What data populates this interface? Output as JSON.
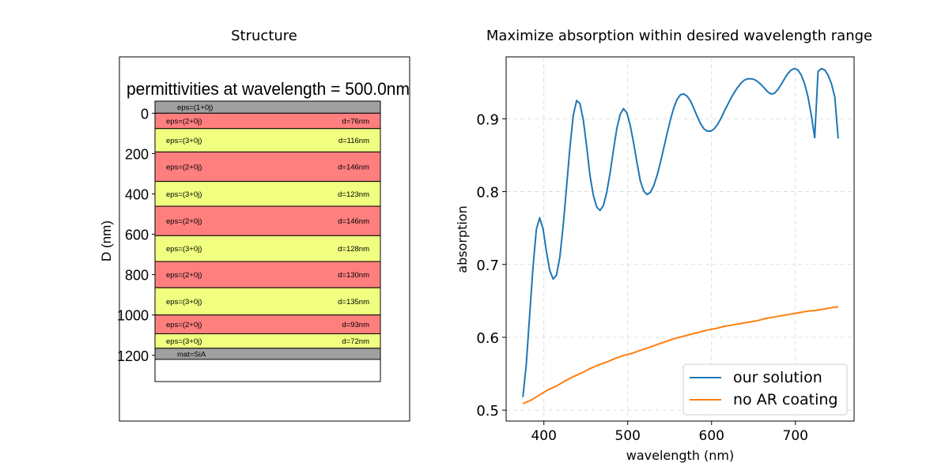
{
  "chart_data": [
    {
      "type": "layer-stack",
      "title": "Structure",
      "inner_title": "permittivities at wavelength = 500.0nm",
      "ylabel": "D (nm)",
      "ylim": [
        -60,
        1330
      ],
      "yticks": [
        0,
        200,
        400,
        600,
        800,
        1000,
        1200
      ],
      "colors": {
        "ambient": "#a0a0a0",
        "eps2": "#ff7f7f",
        "eps3": "#f0ff80",
        "substrate": "#a0a0a0"
      },
      "layers": [
        {
          "label": "eps=(1+0j)",
          "thickness_label": "",
          "kind": "ambient",
          "start": -60,
          "end": 0
        },
        {
          "label": "eps=(2+0j)",
          "thickness_label": "d=76nm",
          "kind": "eps2",
          "start": 0,
          "end": 76
        },
        {
          "label": "eps=(3+0j)",
          "thickness_label": "d=116nm",
          "kind": "eps3",
          "start": 76,
          "end": 192
        },
        {
          "label": "eps=(2+0j)",
          "thickness_label": "d=146nm",
          "kind": "eps2",
          "start": 192,
          "end": 338
        },
        {
          "label": "eps=(3+0j)",
          "thickness_label": "d=123nm",
          "kind": "eps3",
          "start": 338,
          "end": 461
        },
        {
          "label": "eps=(2+0j)",
          "thickness_label": "d=146nm",
          "kind": "eps2",
          "start": 461,
          "end": 607
        },
        {
          "label": "eps=(3+0j)",
          "thickness_label": "d=128nm",
          "kind": "eps3",
          "start": 607,
          "end": 735
        },
        {
          "label": "eps=(2+0j)",
          "thickness_label": "d=130nm",
          "kind": "eps2",
          "start": 735,
          "end": 865
        },
        {
          "label": "eps=(3+0j)",
          "thickness_label": "d=135nm",
          "kind": "eps3",
          "start": 865,
          "end": 1000
        },
        {
          "label": "eps=(2+0j)",
          "thickness_label": "d=93nm",
          "kind": "eps2",
          "start": 1000,
          "end": 1093
        },
        {
          "label": "eps=(3+0j)",
          "thickness_label": "d=72nm",
          "kind": "eps3",
          "start": 1093,
          "end": 1165
        },
        {
          "label": "mat=SiA",
          "thickness_label": "",
          "kind": "substrate",
          "start": 1165,
          "end": 1220
        }
      ]
    },
    {
      "type": "line",
      "title": "Maximize absorption within desired wavelength range",
      "xlabel": "wavelength (nm)",
      "ylabel": "absorption",
      "xlim": [
        355,
        770
      ],
      "ylim": [
        0.485,
        0.985
      ],
      "xticks": [
        400,
        500,
        600,
        700
      ],
      "yticks": [
        0.5,
        0.6,
        0.7,
        0.8,
        0.9
      ],
      "grid": true,
      "legend_position": "bottom-right",
      "series": [
        {
          "name": "our solution",
          "color": "#1f77b4",
          "x": [
            375,
            379,
            383,
            387,
            391,
            395,
            399,
            403,
            407,
            411,
            415,
            419,
            423,
            427,
            431,
            435,
            439,
            443,
            447,
            451,
            455,
            459,
            463,
            467,
            471,
            475,
            479,
            483,
            487,
            491,
            495,
            499,
            503,
            507,
            511,
            515,
            519,
            523,
            527,
            531,
            535,
            539,
            543,
            547,
            551,
            555,
            559,
            563,
            567,
            571,
            575,
            579,
            583,
            587,
            591,
            595,
            599,
            603,
            607,
            611,
            615,
            619,
            623,
            627,
            631,
            635,
            639,
            643,
            647,
            651,
            655,
            659,
            663,
            667,
            671,
            675,
            679,
            683,
            687,
            691,
            695,
            699,
            703,
            707,
            711,
            715,
            719,
            723,
            727,
            731,
            735,
            739,
            743,
            747,
            751
          ],
          "y": [
            0.518,
            0.562,
            0.63,
            0.695,
            0.748,
            0.764,
            0.749,
            0.718,
            0.692,
            0.68,
            0.685,
            0.71,
            0.753,
            0.805,
            0.86,
            0.904,
            0.925,
            0.921,
            0.899,
            0.862,
            0.822,
            0.795,
            0.779,
            0.774,
            0.781,
            0.799,
            0.826,
            0.857,
            0.887,
            0.906,
            0.914,
            0.908,
            0.891,
            0.867,
            0.84,
            0.815,
            0.801,
            0.796,
            0.799,
            0.808,
            0.822,
            0.84,
            0.86,
            0.88,
            0.899,
            0.915,
            0.927,
            0.933,
            0.934,
            0.931,
            0.924,
            0.914,
            0.903,
            0.893,
            0.886,
            0.883,
            0.883,
            0.886,
            0.892,
            0.9,
            0.91,
            0.919,
            0.928,
            0.936,
            0.943,
            0.949,
            0.953,
            0.955,
            0.955,
            0.954,
            0.951,
            0.947,
            0.942,
            0.937,
            0.934,
            0.935,
            0.94,
            0.947,
            0.955,
            0.962,
            0.967,
            0.969,
            0.967,
            0.96,
            0.948,
            0.93,
            0.905,
            0.874,
            0.965,
            0.969,
            0.967,
            0.96,
            0.948,
            0.93,
            0.873
          ]
        },
        {
          "name": "no AR coating",
          "color": "#ff7f0e",
          "x": [
            375,
            385,
            395,
            405,
            415,
            425,
            435,
            445,
            455,
            465,
            475,
            485,
            495,
            505,
            515,
            525,
            535,
            545,
            555,
            565,
            575,
            585,
            595,
            605,
            615,
            625,
            635,
            645,
            655,
            665,
            675,
            685,
            695,
            705,
            715,
            725,
            735,
            745,
            751
          ],
          "y": [
            0.509,
            0.514,
            0.521,
            0.528,
            0.533,
            0.54,
            0.546,
            0.551,
            0.557,
            0.562,
            0.566,
            0.571,
            0.575,
            0.578,
            0.582,
            0.586,
            0.59,
            0.594,
            0.598,
            0.601,
            0.604,
            0.607,
            0.61,
            0.612,
            0.615,
            0.617,
            0.619,
            0.621,
            0.623,
            0.626,
            0.628,
            0.63,
            0.632,
            0.634,
            0.636,
            0.637,
            0.639,
            0.641,
            0.642
          ]
        }
      ]
    }
  ]
}
